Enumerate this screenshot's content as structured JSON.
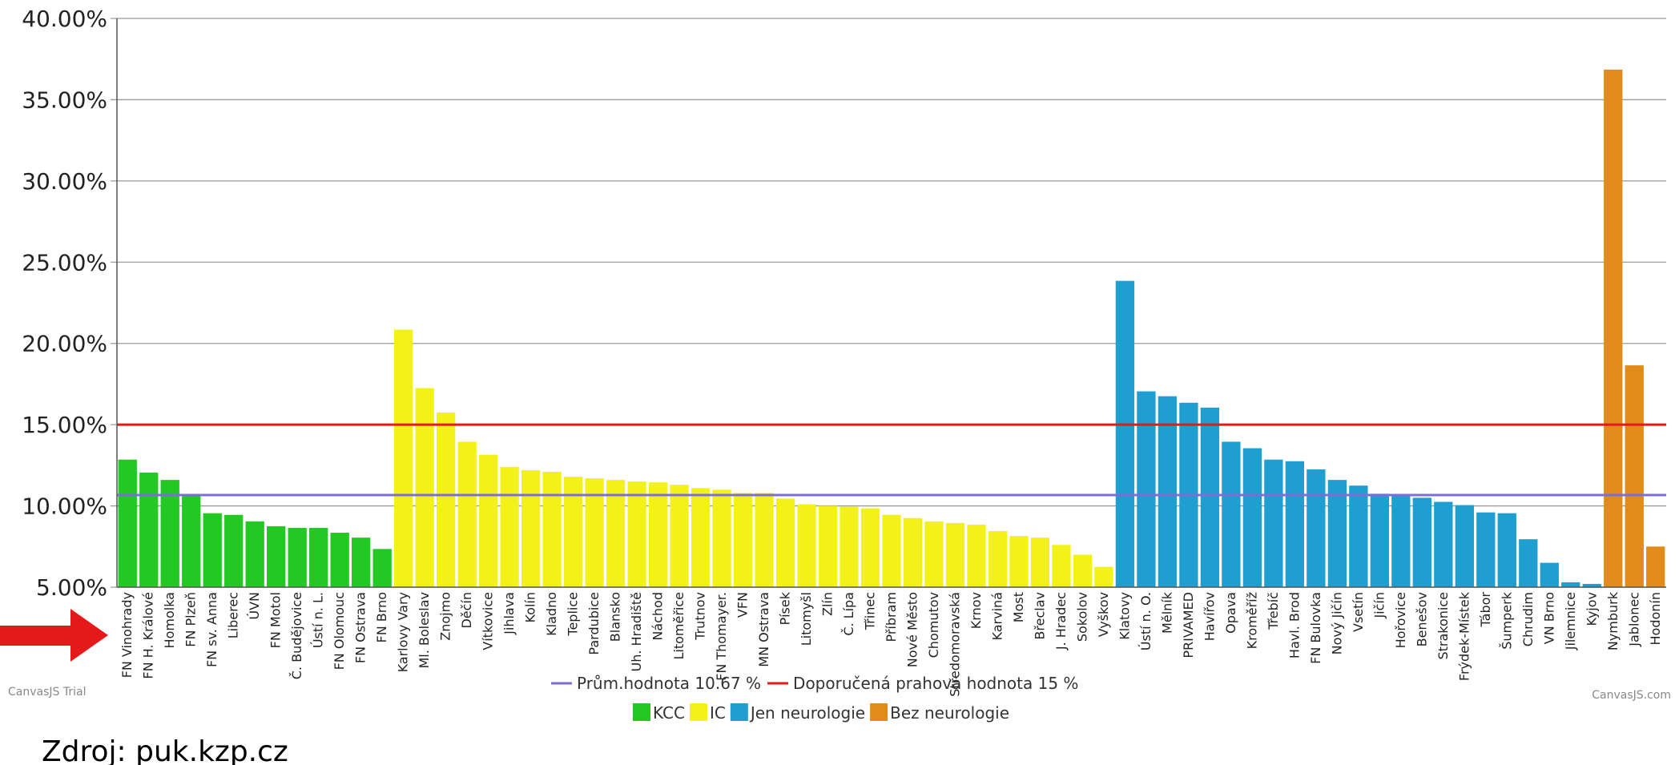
{
  "chart_data": {
    "type": "bar",
    "ylim": [
      5,
      40
    ],
    "yticks": [
      "5.00%",
      "10.00%",
      "15.00%",
      "20.00%",
      "25.00%",
      "30.00%",
      "35.00%",
      "40.00%"
    ],
    "grid": true,
    "categories": [
      "FN Vinohrady",
      "FN H. Králové",
      "Homolka",
      "FN Plzeň",
      "FN sv. Anna",
      "Liberec",
      "ÚVN",
      "FN Motol",
      "Č. Budějovice",
      "Ústí n. L.",
      "FN Olomouc",
      "FN Ostrava",
      "FN Brno",
      "Karlovy Vary",
      "Ml. Boleslav",
      "Znojmo",
      "Děčín",
      "Vítkovice",
      "Jihlava",
      "Kolín",
      "Kladno",
      "Teplice",
      "Pardubice",
      "Blansko",
      "Uh. Hradiště",
      "Náchod",
      "Litoměřice",
      "Trutnov",
      "FN Thomayer.",
      "VFN",
      "MN Ostrava",
      "Písek",
      "Litomyšl",
      "Zlín",
      "Č. Lípa",
      "Třinec",
      "Příbram",
      "Nové Město",
      "Chomutov",
      "Středomoravská",
      "Krnov",
      "Karviná",
      "Most",
      "Břeclav",
      "J. Hradec",
      "Sokolov",
      "Vyškov",
      "Klatovy",
      "Ústí n. O.",
      "Mělník",
      "PRIVAMED",
      "Havířov",
      "Opava",
      "Kroměříž",
      "Třebíč",
      "Havl. Brod",
      "FN Bulovka",
      "Nový Jičín",
      "Vsetín",
      "Jičín",
      "Hořovice",
      "Benešov",
      "Strakonice",
      "Frýdek-Místek",
      "Tábor",
      "Šumperk",
      "Chrudim",
      "VN Brno",
      "Jilemnice",
      "Kyjov",
      "Nymburk",
      "Jablonec",
      "Hodonín"
    ],
    "values": [
      12.85,
      12.05,
      11.6,
      10.7,
      9.55,
      9.45,
      9.05,
      8.75,
      8.65,
      8.65,
      8.35,
      8.05,
      7.35,
      20.85,
      17.25,
      15.75,
      13.95,
      13.15,
      12.4,
      12.2,
      12.1,
      11.8,
      11.7,
      11.6,
      11.5,
      11.45,
      11.3,
      11.1,
      11.0,
      10.8,
      10.8,
      10.45,
      10.1,
      10.0,
      9.95,
      9.85,
      9.45,
      9.25,
      9.05,
      8.95,
      8.85,
      8.45,
      8.15,
      8.05,
      7.6,
      7.0,
      6.25,
      23.85,
      17.05,
      16.75,
      16.35,
      16.05,
      13.95,
      13.55,
      12.85,
      12.75,
      12.25,
      11.6,
      11.25,
      10.75,
      10.65,
      10.5,
      10.25,
      10.05,
      9.6,
      9.55,
      7.95,
      6.5,
      5.3,
      5.2,
      36.85,
      18.65,
      7.5
    ],
    "groups": [
      "KCC",
      "KCC",
      "KCC",
      "KCC",
      "KCC",
      "KCC",
      "KCC",
      "KCC",
      "KCC",
      "KCC",
      "KCC",
      "KCC",
      "KCC",
      "IC",
      "IC",
      "IC",
      "IC",
      "IC",
      "IC",
      "IC",
      "IC",
      "IC",
      "IC",
      "IC",
      "IC",
      "IC",
      "IC",
      "IC",
      "IC",
      "IC",
      "IC",
      "IC",
      "IC",
      "IC",
      "IC",
      "IC",
      "IC",
      "IC",
      "IC",
      "IC",
      "IC",
      "IC",
      "IC",
      "IC",
      "IC",
      "IC",
      "IC",
      "Jen neurologie",
      "Jen neurologie",
      "Jen neurologie",
      "Jen neurologie",
      "Jen neurologie",
      "Jen neurologie",
      "Jen neurologie",
      "Jen neurologie",
      "Jen neurologie",
      "Jen neurologie",
      "Jen neurologie",
      "Jen neurologie",
      "Jen neurologie",
      "Jen neurologie",
      "Jen neurologie",
      "Jen neurologie",
      "Jen neurologie",
      "Jen neurologie",
      "Jen neurologie",
      "Jen neurologie",
      "Jen neurologie",
      "Jen neurologie",
      "Jen neurologie",
      "Bez neurologie",
      "Bez neurologie",
      "Bez neurologie"
    ],
    "group_colors": {
      "KCC": "#22c922",
      "IC": "#f2f21a",
      "Jen neurologie": "#1f9fcf",
      "Bez neurologie": "#e08b1a"
    },
    "reference_lines": [
      {
        "label": "Prům.hodnota 10.67 %",
        "value": 10.67,
        "color": "#7b6fd6"
      },
      {
        "label": "Doporučená prahová hodnota 15 %",
        "value": 15,
        "color": "#e51919"
      }
    ],
    "legend": {
      "lines": [
        "Prům.hodnota 10.67 %",
        "Doporučená prahová hodnota 15 %"
      ],
      "groups": [
        {
          "name": "KCC",
          "color": "#22c922"
        },
        {
          "name": "IC",
          "color": "#f2f21a"
        },
        {
          "name": "Jen neurologie",
          "color": "#1f9fcf"
        },
        {
          "name": "Bez neurologie",
          "color": "#e08b1a"
        }
      ],
      "placement": "bottom-center"
    }
  },
  "watermark_left": "CanvasJS Trial",
  "watermark_right": "CanvasJS.com",
  "source_note": "Zdroj: puk.kzp.cz",
  "arrow_color": "#e51919"
}
